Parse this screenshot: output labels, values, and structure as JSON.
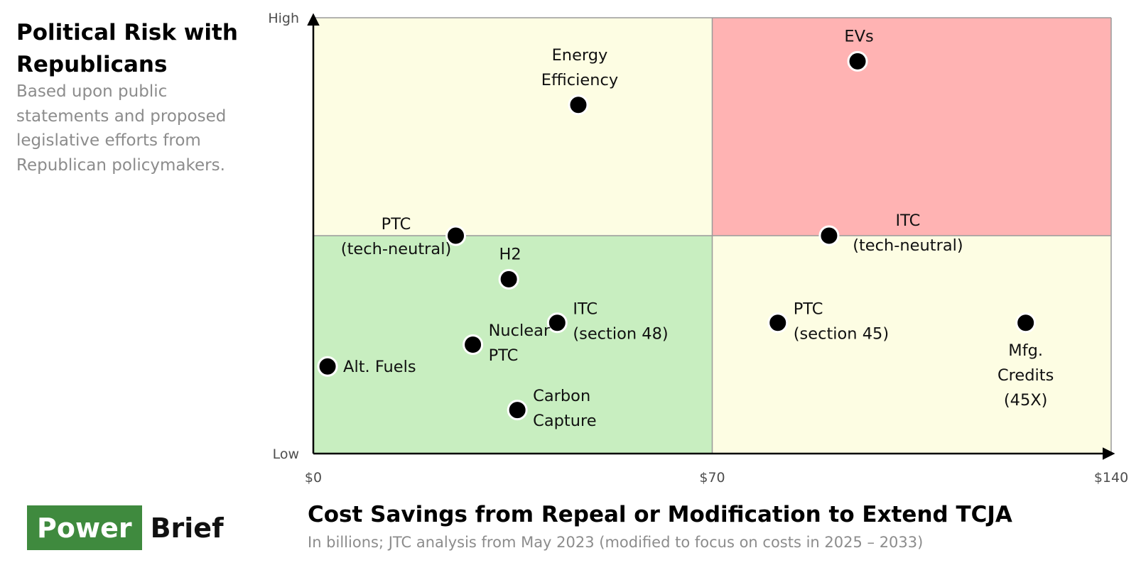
{
  "chart_data": {
    "type": "scatter",
    "title": "Political Risk with Republicans",
    "ylabel": "Political Risk with Republicans",
    "ylabel_description": "Based upon public statements and proposed legislative efforts from Republican policymakers.",
    "xlabel": "Cost Savings from Repeal or Modification to Extend TCJA",
    "xlabel_description": "In billions; JTC analysis from May 2023 (modified to focus on costs in 2025 – 2033)",
    "xlim": [
      0,
      140
    ],
    "ylim": [
      0,
      100
    ],
    "x_ticks": [
      {
        "value": 0,
        "label": "$0"
      },
      {
        "value": 70,
        "label": "$70"
      },
      {
        "value": 140,
        "label": "$140"
      }
    ],
    "y_ticks": [
      {
        "value": 0,
        "label": "Low"
      },
      {
        "value": 100,
        "label": "High"
      }
    ],
    "quadrant_split": {
      "x": 70,
      "y": 50
    },
    "quadrants": [
      {
        "name": "low-cost-high-risk",
        "x_range": [
          0,
          70
        ],
        "y_range": [
          50,
          100
        ],
        "color": "#fdfde3"
      },
      {
        "name": "high-cost-high-risk",
        "x_range": [
          70,
          140
        ],
        "y_range": [
          50,
          100
        ],
        "color": "#ffb3b3"
      },
      {
        "name": "low-cost-low-risk",
        "x_range": [
          0,
          70
        ],
        "y_range": [
          0,
          50
        ],
        "color": "#c8eec0"
      },
      {
        "name": "high-cost-low-risk",
        "x_range": [
          70,
          140
        ],
        "y_range": [
          0,
          50
        ],
        "color": "#fdfde3"
      }
    ],
    "points": [
      {
        "id": "evs",
        "label": [
          "EVs"
        ],
        "x": 95.5,
        "y": 90,
        "label_pos": "above"
      },
      {
        "id": "energy-efficiency",
        "label": [
          "Energy",
          "Efficiency"
        ],
        "x": 46.5,
        "y": 80,
        "label_pos": "above"
      },
      {
        "id": "ptc-tech-neutral",
        "label": [
          "PTC",
          "(tech-neutral)"
        ],
        "x": 25,
        "y": 50,
        "label_pos": "left"
      },
      {
        "id": "itc-tech-neutral",
        "label": [
          "ITC",
          "(tech-neutral)"
        ],
        "x": 90.5,
        "y": 50,
        "label_pos": "right-below"
      },
      {
        "id": "h2",
        "label": [
          "H2"
        ],
        "x": 34.3,
        "y": 40,
        "label_pos": "above"
      },
      {
        "id": "itc-section-48",
        "label": [
          "ITC",
          "(section 48)"
        ],
        "x": 42.8,
        "y": 30,
        "label_pos": "right"
      },
      {
        "id": "ptc-section-45",
        "label": [
          "PTC",
          "(section 45)"
        ],
        "x": 81.5,
        "y": 30,
        "label_pos": "right"
      },
      {
        "id": "mfg-credits",
        "label": [
          "Mfg.",
          "Credits",
          "(45X)"
        ],
        "x": 125,
        "y": 30,
        "label_pos": "below"
      },
      {
        "id": "nuclear-ptc",
        "label": [
          "Nuclear",
          "PTC"
        ],
        "x": 28,
        "y": 25,
        "label_pos": "right"
      },
      {
        "id": "alt-fuels",
        "label": [
          "Alt. Fuels"
        ],
        "x": 2.5,
        "y": 20,
        "label_pos": "right"
      },
      {
        "id": "carbon-capture",
        "label": [
          "Carbon",
          "Capture"
        ],
        "x": 35.8,
        "y": 10,
        "label_pos": "right"
      }
    ]
  },
  "branding": {
    "logo_left": "Power",
    "logo_right": "Brief",
    "accent": "#3f8a3e"
  },
  "colors": {
    "point_fill": "#000000",
    "point_stroke": "#ffffff",
    "axis": "#000000",
    "grid": "#9a9a9a",
    "tick_label": "#4d4d4d"
  }
}
